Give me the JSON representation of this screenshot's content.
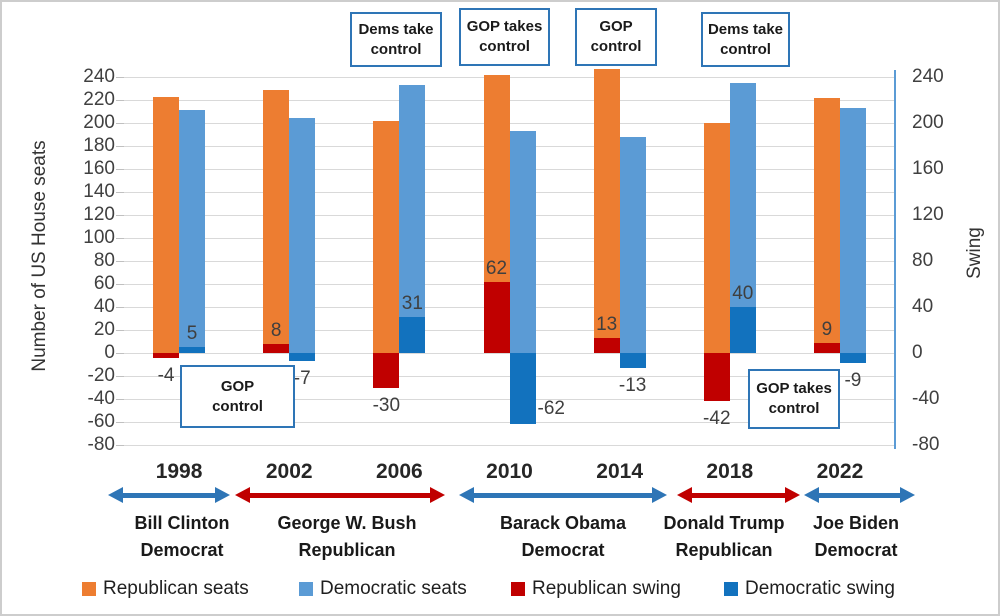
{
  "chart": {
    "left_axis_title": "Number of US House seats",
    "right_axis_title": "Swing",
    "left_ticks": [
      240,
      220,
      200,
      180,
      160,
      140,
      120,
      100,
      80,
      60,
      40,
      20,
      0,
      -20,
      -40,
      -60,
      -80
    ],
    "right_ticks": [
      240,
      200,
      160,
      120,
      80,
      40,
      0,
      -40,
      -80
    ]
  },
  "chart_data": {
    "type": "bar",
    "categories": [
      "1998",
      "2002",
      "2006",
      "2010",
      "2014",
      "2018",
      "2022"
    ],
    "series": [
      {
        "name": "Republican seats",
        "role": "seats",
        "color": "#ED7D31",
        "axis": "left",
        "values": [
          223,
          229,
          202,
          242,
          247,
          200,
          222
        ]
      },
      {
        "name": "Democratic seats",
        "role": "seats",
        "color": "#5B9BD5",
        "axis": "left",
        "values": [
          211,
          204,
          233,
          193,
          188,
          235,
          213
        ]
      },
      {
        "name": "Republican swing",
        "role": "swing",
        "color": "#C00000",
        "axis": "right",
        "values": [
          -4,
          8,
          -30,
          62,
          13,
          -42,
          9
        ]
      },
      {
        "name": "Democratic swing",
        "role": "swing",
        "color": "#1272BE",
        "axis": "right",
        "values": [
          5,
          -7,
          31,
          -62,
          -13,
          40,
          -9
        ]
      }
    ],
    "ylabel": "Number of US House seats",
    "y2label": "Swing",
    "ylim": [
      -80,
      240
    ],
    "y2lim": [
      -80,
      240
    ],
    "grid": true,
    "legend_position": "bottom"
  },
  "annotations": {
    "top": [
      {
        "text": "Dems take\ncontrol"
      },
      {
        "text": "GOP takes\ncontrol"
      },
      {
        "text": "GOP\ncontrol"
      },
      {
        "text": "Dems take\ncontrol"
      }
    ],
    "inner": [
      {
        "text": "GOP\ncontrol"
      },
      {
        "text": "GOP takes\ncontrol"
      }
    ]
  },
  "terms": [
    {
      "president": "Bill Clinton",
      "party": "Democrat",
      "arrow_color": "#2E75B6"
    },
    {
      "president": "George W. Bush",
      "party": "Republican",
      "arrow_color": "#C00000"
    },
    {
      "president": "Barack Obama",
      "party": "Democrat",
      "arrow_color": "#2E75B6"
    },
    {
      "president": "Donald Trump",
      "party": "Republican",
      "arrow_color": "#C00000"
    },
    {
      "president": "Joe Biden",
      "party": "Democrat",
      "arrow_color": "#2E75B6"
    }
  ],
  "legend": [
    {
      "label": "Republican seats",
      "color": "#ED7D31"
    },
    {
      "label": "Democratic seats",
      "color": "#5B9BD5"
    },
    {
      "label": "Republican swing",
      "color": "#C00000"
    },
    {
      "label": "Democratic swing",
      "color": "#1272BE"
    }
  ]
}
